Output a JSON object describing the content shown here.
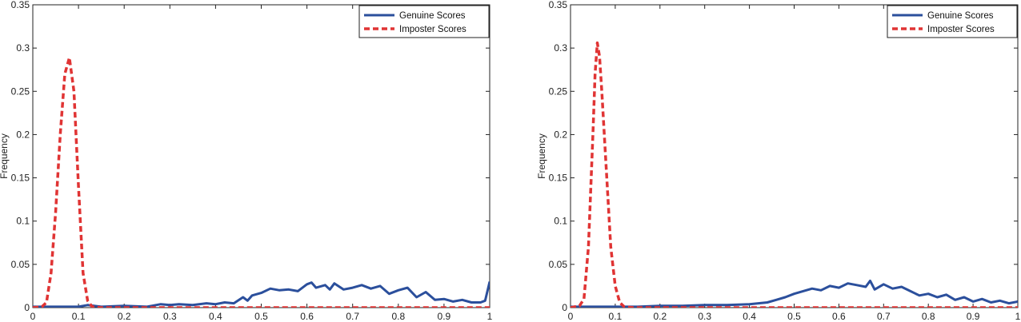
{
  "chart_data": [
    {
      "type": "line",
      "title": "",
      "xlabel": "",
      "ylabel": "Frequency",
      "xlim": [
        0,
        1
      ],
      "ylim": [
        0,
        0.35
      ],
      "xticks": [
        "0",
        "0.1",
        "0.2",
        "0.3",
        "0.4",
        "0.5",
        "0.6",
        "0.7",
        "0.8",
        "0.9",
        "1"
      ],
      "yticks": [
        "0",
        "0.05",
        "0.1",
        "0.15",
        "0.2",
        "0.25",
        "0.3",
        "0.35"
      ],
      "grid": false,
      "legend_position": "top-right",
      "series": [
        {
          "name": "Genuine Scores",
          "color": "#2b4f9c",
          "style": "solid",
          "x": [
            0,
            0.05,
            0.1,
            0.12,
            0.15,
            0.2,
            0.25,
            0.28,
            0.3,
            0.32,
            0.35,
            0.38,
            0.4,
            0.42,
            0.44,
            0.46,
            0.47,
            0.48,
            0.5,
            0.52,
            0.54,
            0.56,
            0.58,
            0.6,
            0.61,
            0.62,
            0.64,
            0.65,
            0.66,
            0.68,
            0.7,
            0.72,
            0.74,
            0.76,
            0.78,
            0.8,
            0.82,
            0.84,
            0.86,
            0.88,
            0.9,
            0.92,
            0.94,
            0.96,
            0.98,
            0.99,
            1.0
          ],
          "y": [
            0.001,
            0.001,
            0.001,
            0.003,
            0.001,
            0.002,
            0.001,
            0.004,
            0.003,
            0.004,
            0.003,
            0.005,
            0.004,
            0.006,
            0.005,
            0.012,
            0.008,
            0.014,
            0.017,
            0.022,
            0.02,
            0.021,
            0.019,
            0.027,
            0.029,
            0.023,
            0.026,
            0.021,
            0.028,
            0.021,
            0.023,
            0.026,
            0.022,
            0.025,
            0.016,
            0.02,
            0.023,
            0.012,
            0.018,
            0.009,
            0.01,
            0.007,
            0.009,
            0.006,
            0.006,
            0.008,
            0.03
          ]
        },
        {
          "name": "Imposter Scores",
          "color": "#e03434",
          "style": "dashed",
          "x": [
            0,
            0.02,
            0.03,
            0.04,
            0.05,
            0.06,
            0.07,
            0.08,
            0.09,
            0.1,
            0.11,
            0.12,
            0.13,
            0.15,
            1.0
          ],
          "y": [
            0,
            0.001,
            0.006,
            0.04,
            0.11,
            0.2,
            0.27,
            0.289,
            0.25,
            0.14,
            0.04,
            0.008,
            0.001,
            0,
            0
          ]
        }
      ]
    },
    {
      "type": "line",
      "title": "",
      "xlabel": "",
      "ylabel": "Frequency",
      "xlim": [
        0,
        1
      ],
      "ylim": [
        0,
        0.35
      ],
      "xticks": [
        "0",
        "0.1",
        "0.2",
        "0.3",
        "0.4",
        "0.5",
        "0.6",
        "0.7",
        "0.8",
        "0.9",
        "1"
      ],
      "yticks": [
        "0",
        "0.05",
        "0.1",
        "0.15",
        "0.2",
        "0.25",
        "0.3",
        "0.35"
      ],
      "grid": false,
      "legend_position": "top-right",
      "series": [
        {
          "name": "Genuine Scores",
          "color": "#2b4f9c",
          "style": "solid",
          "x": [
            0,
            0.1,
            0.15,
            0.2,
            0.25,
            0.3,
            0.35,
            0.4,
            0.42,
            0.44,
            0.46,
            0.48,
            0.5,
            0.52,
            0.54,
            0.56,
            0.58,
            0.6,
            0.62,
            0.64,
            0.66,
            0.67,
            0.68,
            0.7,
            0.72,
            0.74,
            0.76,
            0.78,
            0.8,
            0.82,
            0.84,
            0.86,
            0.88,
            0.9,
            0.92,
            0.94,
            0.96,
            0.98,
            1.0
          ],
          "y": [
            0.001,
            0.001,
            0.001,
            0.002,
            0.002,
            0.003,
            0.003,
            0.004,
            0.005,
            0.006,
            0.009,
            0.012,
            0.016,
            0.019,
            0.022,
            0.02,
            0.025,
            0.023,
            0.028,
            0.026,
            0.024,
            0.031,
            0.021,
            0.027,
            0.022,
            0.024,
            0.019,
            0.014,
            0.016,
            0.012,
            0.015,
            0.009,
            0.012,
            0.007,
            0.01,
            0.006,
            0.008,
            0.005,
            0.007
          ]
        },
        {
          "name": "Imposter Scores",
          "color": "#e03434",
          "style": "dashed",
          "x": [
            0,
            0.02,
            0.03,
            0.04,
            0.05,
            0.055,
            0.06,
            0.065,
            0.07,
            0.08,
            0.09,
            0.1,
            0.11,
            0.12,
            0.14,
            1.0
          ],
          "y": [
            0,
            0.002,
            0.01,
            0.07,
            0.2,
            0.27,
            0.306,
            0.29,
            0.25,
            0.16,
            0.07,
            0.025,
            0.006,
            0.001,
            0,
            0
          ]
        }
      ]
    }
  ]
}
